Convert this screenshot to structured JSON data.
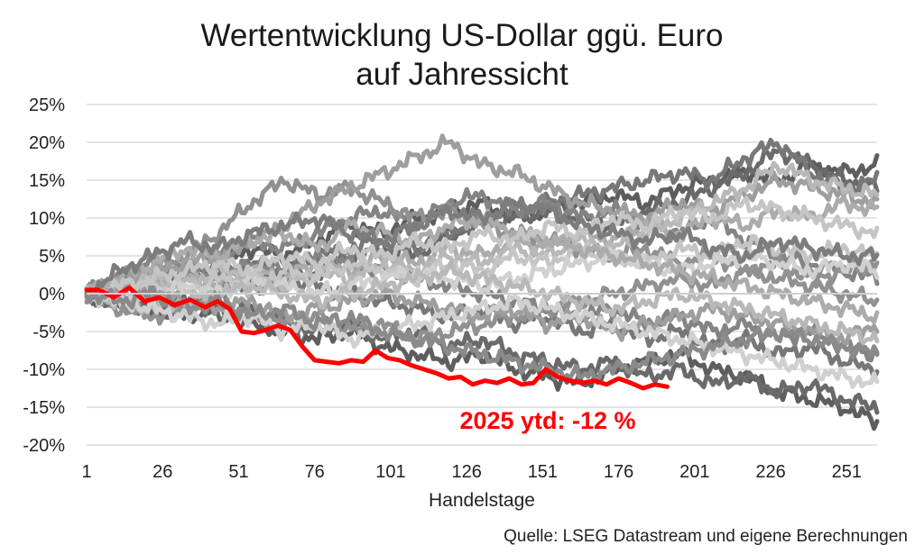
{
  "chart_data": {
    "type": "line",
    "title": "Wertentwicklung US-Dollar ggü. Euro",
    "subtitle": "auf Jahressicht",
    "xlabel": "Handelstage",
    "ylabel": "",
    "source": "Quelle: LSEG Datastream und eigene Berechnungen",
    "x_ticks": [
      "1",
      "26",
      "51",
      "76",
      "101",
      "126",
      "151",
      "176",
      "201",
      "226",
      "251"
    ],
    "y_ticks": [
      "25%",
      "20%",
      "15%",
      "10%",
      "5%",
      "0%",
      "-5%",
      "-10%",
      "-15%",
      "-20%"
    ],
    "xlim": [
      1,
      261
    ],
    "ylim": [
      -20,
      25
    ],
    "grid": "horizontal",
    "annotation": "2025 ytd: -12 %",
    "highlight": {
      "color": "#ff0000",
      "x": [
        1,
        5,
        10,
        15,
        20,
        25,
        30,
        35,
        40,
        44,
        48,
        52,
        56,
        60,
        64,
        68,
        72,
        76,
        80,
        84,
        88,
        92,
        96,
        100,
        104,
        108,
        112,
        116,
        120,
        124,
        128,
        132,
        136,
        140,
        144,
        148,
        152,
        156,
        160,
        164,
        168,
        172,
        176,
        180,
        184,
        188,
        192
      ],
      "values": [
        0.5,
        0.5,
        -0.5,
        0.8,
        -1.0,
        -0.5,
        -1.5,
        -0.8,
        -1.8,
        -1.0,
        -2.0,
        -5.0,
        -5.2,
        -4.8,
        -4.2,
        -4.8,
        -7.0,
        -8.8,
        -9.0,
        -9.2,
        -8.8,
        -9.0,
        -7.5,
        -8.5,
        -8.8,
        -9.5,
        -10.0,
        -10.5,
        -11.2,
        -11.0,
        -12.0,
        -11.5,
        -11.8,
        -11.2,
        -12.0,
        -11.8,
        -10.0,
        -11.0,
        -11.5,
        -11.8,
        -11.5,
        -12.0,
        -11.2,
        -11.8,
        -12.5,
        -12.0,
        -12.3
      ]
    },
    "series": [
      {
        "color": "#5e5e5e",
        "values": [
          0,
          1,
          3,
          2,
          4,
          6,
          5,
          7,
          9,
          8,
          10,
          11,
          12,
          10,
          11,
          12,
          13,
          12,
          14,
          15,
          16,
          15,
          17,
          16,
          17
        ]
      },
      {
        "color": "#6a6a6a",
        "values": [
          0,
          -2,
          -1,
          -2,
          0,
          2,
          1,
          3,
          5,
          6,
          5,
          8,
          9,
          10,
          11,
          10,
          9,
          11,
          12,
          14,
          16,
          19,
          17,
          15,
          14
        ]
      },
      {
        "color": "#777777",
        "values": [
          0,
          1,
          2,
          3,
          2,
          4,
          3,
          5,
          6,
          7,
          6,
          8,
          10,
          11,
          12,
          13,
          14,
          15,
          16,
          15,
          18,
          20,
          16,
          14,
          15
        ]
      },
      {
        "color": "#848484",
        "values": [
          0,
          2,
          4,
          3,
          5,
          7,
          6,
          8,
          10,
          11,
          9,
          12,
          13,
          11,
          12,
          10,
          11,
          9,
          8,
          10,
          7,
          5,
          4,
          3,
          2
        ]
      },
      {
        "color": "#5e5e5e",
        "values": [
          0,
          -1,
          -2,
          -3,
          -2,
          -4,
          -5,
          -6,
          -5,
          -7,
          -8,
          -9,
          -8,
          -10,
          -11,
          -12,
          -10,
          -9,
          -8,
          -10,
          -11,
          -13,
          -14,
          -15,
          -17
        ]
      },
      {
        "color": "#6a6a6a",
        "values": [
          0,
          -1,
          -2,
          -1,
          -3,
          -2,
          -4,
          -5,
          -4,
          -6,
          -5,
          -7,
          -6,
          -8,
          -9,
          -10,
          -9,
          -11,
          -10,
          -12,
          -11,
          -13,
          -12,
          -14,
          -15
        ]
      },
      {
        "color": "#777777",
        "values": [
          0,
          1,
          0,
          -1,
          0,
          1,
          2,
          1,
          0,
          -1,
          -2,
          -3,
          -2,
          -4,
          -3,
          -5,
          -4,
          -6,
          -5,
          -7,
          -6,
          -8,
          -7,
          -9,
          -10
        ]
      },
      {
        "color": "#848484",
        "values": [
          0,
          2,
          1,
          3,
          2,
          4,
          3,
          5,
          4,
          3,
          2,
          1,
          0,
          -1,
          -2,
          -3,
          -2,
          -4,
          -3,
          -5,
          -4,
          -6,
          -5,
          -7,
          -8
        ]
      },
      {
        "color": "#919191",
        "values": [
          0,
          1,
          3,
          5,
          8,
          12,
          15,
          13,
          14,
          12,
          10,
          11,
          9,
          8,
          7,
          6,
          5,
          6,
          4,
          5,
          3,
          4,
          2,
          3,
          4
        ]
      },
      {
        "color": "#9e9e9e",
        "values": [
          0,
          2,
          3,
          4,
          5,
          7,
          9,
          12,
          14,
          16,
          18,
          20,
          17,
          16,
          14,
          12,
          11,
          10,
          12,
          11,
          13,
          15,
          14,
          13,
          12
        ]
      },
      {
        "color": "#ababab",
        "values": [
          0,
          -1,
          1,
          2,
          1,
          3,
          2,
          4,
          3,
          5,
          4,
          6,
          5,
          7,
          6,
          8,
          7,
          9,
          8,
          10,
          9,
          11,
          10,
          12,
          11
        ]
      },
      {
        "color": "#b8b8b8",
        "values": [
          0,
          1,
          2,
          1,
          3,
          2,
          1,
          3,
          2,
          4,
          3,
          5,
          4,
          6,
          5,
          7,
          6,
          8,
          10,
          12,
          14,
          17,
          15,
          14,
          13
        ]
      },
      {
        "color": "#c5c5c5",
        "values": [
          0,
          0,
          1,
          0,
          2,
          1,
          3,
          2,
          4,
          3,
          2,
          4,
          3,
          5,
          4,
          6,
          5,
          4,
          6,
          5,
          7,
          6,
          5,
          6,
          5
        ]
      },
      {
        "color": "#d0d0d0",
        "values": [
          0,
          -1,
          0,
          1,
          0,
          2,
          1,
          0,
          1,
          2,
          3,
          2,
          1,
          2,
          3,
          4,
          5,
          4,
          3,
          4,
          5,
          4,
          3,
          4,
          3
        ]
      },
      {
        "color": "#919191",
        "values": [
          0,
          -2,
          -3,
          -2,
          -1,
          -3,
          -4,
          -3,
          -5,
          -4,
          -6,
          -5,
          -4,
          -3,
          -2,
          -1,
          0,
          1,
          2,
          1,
          3,
          2,
          1,
          0,
          -1
        ]
      },
      {
        "color": "#9e9e9e",
        "values": [
          0,
          1,
          0,
          -1,
          -2,
          -1,
          -3,
          -2,
          -1,
          0,
          -1,
          -2,
          -3,
          -2,
          -4,
          -3,
          -5,
          -4,
          -3,
          -2,
          -3,
          -4,
          -5,
          -6,
          -4
        ]
      },
      {
        "color": "#ababab",
        "values": [
          0,
          2,
          4,
          6,
          5,
          7,
          8,
          6,
          9,
          8,
          7,
          9,
          10,
          8,
          7,
          6,
          5,
          4,
          3,
          2,
          1,
          0,
          -1,
          -2,
          -3
        ]
      },
      {
        "color": "#b8b8b8",
        "values": [
          0,
          -1,
          -2,
          -1,
          0,
          1,
          0,
          -1,
          0,
          1,
          2,
          3,
          2,
          1,
          0,
          -1,
          -2,
          -1,
          0,
          -1,
          -2,
          -3,
          -4,
          -5,
          -6
        ]
      },
      {
        "color": "#c5c5c5",
        "values": [
          0,
          1,
          2,
          3,
          4,
          3,
          5,
          4,
          6,
          5,
          7,
          6,
          8,
          7,
          9,
          8,
          10,
          9,
          11,
          10,
          12,
          11,
          10,
          9,
          8
        ]
      },
      {
        "color": "#d0d0d0",
        "values": [
          0,
          -1,
          -2,
          -3,
          -4,
          -3,
          -5,
          -4,
          -6,
          -5,
          -4,
          -3,
          -2,
          -1,
          -2,
          -3,
          -4,
          -5,
          -6,
          -7,
          -8,
          -9,
          -10,
          -11,
          -12
        ]
      },
      {
        "color": "#7d7d7d",
        "values": [
          0,
          3,
          5,
          7,
          6,
          8,
          9,
          10,
          8,
          7,
          9,
          11,
          10,
          12,
          11,
          9,
          8,
          7,
          8,
          6,
          5,
          7,
          6,
          5,
          5
        ]
      },
      {
        "color": "#8a8a8a",
        "values": [
          0,
          -1,
          0,
          -2,
          -1,
          -3,
          -2,
          -4,
          -3,
          -5,
          -6,
          -7,
          -8,
          -9,
          -10,
          -11,
          -10,
          -9,
          -8,
          -7,
          -6,
          -5,
          -6,
          -7,
          -8
        ]
      }
    ]
  }
}
